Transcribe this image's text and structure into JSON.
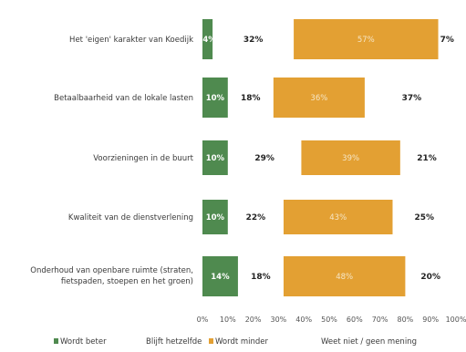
{
  "chart_data": {
    "type": "bar",
    "stacked": true,
    "orientation": "horizontal",
    "categories": [
      "Het 'eigen' karakter van Koedijk",
      "Betaalbaarheid van de lokale lasten",
      "Voorzieningen in de buurt",
      "Kwaliteit van de dienstverlening",
      "Onderhoud van openbare ruimte (straten, fietspaden, stoepen en het groen)"
    ],
    "series": [
      {
        "name": "Wordt beter",
        "color": "#4f8a4f",
        "values": [
          4,
          10,
          10,
          10,
          14
        ]
      },
      {
        "name": "Blijft hetzelfde",
        "color": "#ffffff",
        "values": [
          32,
          18,
          29,
          22,
          18
        ]
      },
      {
        "name": "Wordt minder",
        "color": "#e3a033",
        "values": [
          57,
          36,
          39,
          43,
          48
        ]
      },
      {
        "name": "Weet niet / geen mening",
        "color": "#ffffff",
        "values": [
          7,
          37,
          21,
          25,
          20
        ]
      }
    ],
    "xlim": [
      0,
      100
    ],
    "xticks": [
      "0%",
      "10%",
      "20%",
      "30%",
      "40%",
      "50%",
      "60%",
      "70%",
      "80%",
      "90%",
      "100%"
    ],
    "grid": false,
    "legend_position": "bottom"
  }
}
